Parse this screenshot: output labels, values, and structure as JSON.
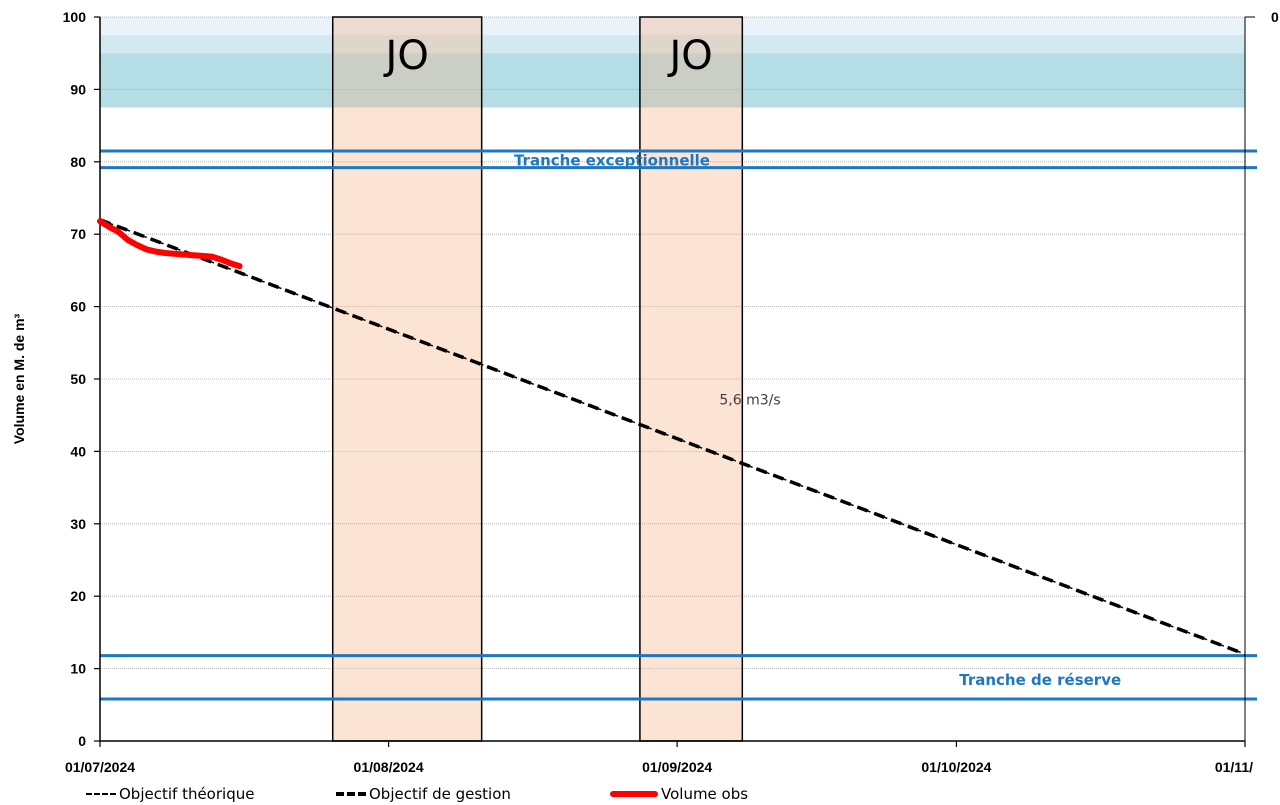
{
  "chart_data": {
    "type": "line",
    "title": "",
    "xlabel": "",
    "ylabel": "Volume en M. de m³",
    "ylim": [
      0,
      100
    ],
    "y_ticks": [
      0,
      10,
      20,
      30,
      40,
      50,
      60,
      70,
      80,
      90,
      100
    ],
    "x_range": [
      "2024-07-01",
      "2024-11-01"
    ],
    "x_tick_labels": [
      "01/07/2024",
      "01/08/2024",
      "01/09/2024",
      "01/10/2024",
      "01/11/"
    ],
    "x_tick_dates": [
      "2024-07-01",
      "2024-08-01",
      "2024-09-01",
      "2024-10-01",
      "2024-11-01"
    ],
    "right_axis_label": "0",
    "grid": true,
    "legend_position": "bottom",
    "series": [
      {
        "name": "Objectif théorique",
        "style": "dashed-thin",
        "color": "#000000",
        "x": [
          "2024-07-01",
          "2024-11-01"
        ],
        "y": [
          72,
          12
        ]
      },
      {
        "name": "Objectif de gestion",
        "style": "dashed-thick",
        "color": "#000000",
        "x": [
          "2024-07-01",
          "2024-11-01"
        ],
        "y": [
          72,
          12
        ]
      },
      {
        "name": "Volume obs",
        "style": "solid-thick",
        "color": "#ff0000",
        "x": [
          "2024-07-01",
          "2024-07-02",
          "2024-07-03",
          "2024-07-04",
          "2024-07-05",
          "2024-07-06",
          "2024-07-07",
          "2024-07-08",
          "2024-07-09",
          "2024-07-10",
          "2024-07-11",
          "2024-07-12",
          "2024-07-13",
          "2024-07-14",
          "2024-07-15",
          "2024-07-16"
        ],
        "y": [
          71.8,
          71.0,
          70.3,
          69.2,
          68.5,
          67.9,
          67.6,
          67.4,
          67.3,
          67.2,
          67.1,
          67.0,
          66.9,
          66.5,
          66.0,
          65.6
        ]
      }
    ],
    "bands": [
      {
        "name": "top-band-light",
        "y": [
          97.5,
          100
        ],
        "color": "#eaf2fa"
      },
      {
        "name": "top-band-mid",
        "y": [
          95,
          97.5
        ],
        "color": "#d3e9f1"
      },
      {
        "name": "top-band-teal",
        "y": [
          87.5,
          95
        ],
        "color": "#b5dde6"
      }
    ],
    "hlines": [
      {
        "name": "exceptional-upper-line",
        "y": 81.5,
        "color": "#1f77c0"
      },
      {
        "name": "exceptional-lower-line",
        "y": 79.2,
        "color": "#1f77c0"
      },
      {
        "name": "reserve-upper-line",
        "y": 11.8,
        "color": "#1f77c0"
      },
      {
        "name": "reserve-lower-line",
        "y": 5.8,
        "color": "#1f77c0"
      }
    ],
    "jo_periods": [
      {
        "label": "JO",
        "start": "2024-07-26",
        "end": "2024-08-11"
      },
      {
        "label": "JO",
        "start": "2024-08-28",
        "end": "2024-09-08"
      }
    ],
    "annotations": {
      "tranche_exceptionnelle": {
        "text": "Tranche exceptionnelle",
        "x": "2024-08-25",
        "y": 80.2,
        "color": "#1f77c0"
      },
      "tranche_reserve": {
        "text": "Tranche de réserve",
        "x": "2024-10-10",
        "y": 8.4,
        "color": "#1f77c0"
      },
      "flow_rate": {
        "text": "5,6 m3/s",
        "x": "2024-09-05",
        "y": 47.2,
        "color": "#404040"
      }
    }
  }
}
